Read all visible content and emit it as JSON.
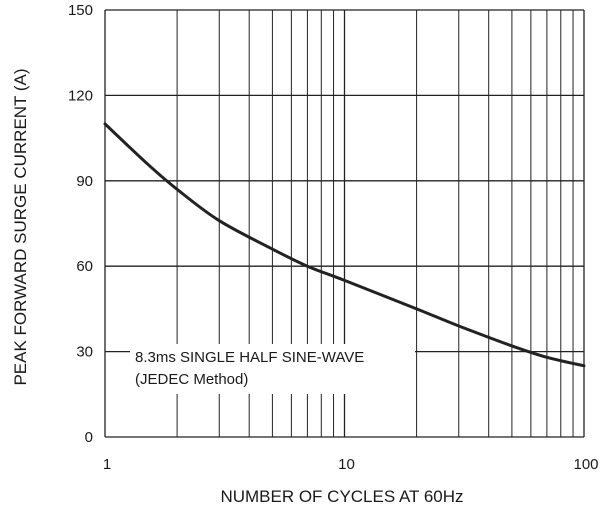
{
  "chart_data": {
    "type": "line",
    "title": "",
    "xlabel": "NUMBER OF CYCLES AT 60Hz",
    "ylabel": "PEAK FORWARD SURGE CURRENT (A)",
    "x_scale": "log",
    "xlim": [
      1,
      100
    ],
    "ylim": [
      0,
      150
    ],
    "grid": true,
    "x_tick_labels": [
      "1",
      "10",
      "100"
    ],
    "x_ticks": [
      1,
      10,
      100
    ],
    "y_tick_labels": [
      "0",
      "30",
      "60",
      "90",
      "120",
      "150"
    ],
    "y_ticks": [
      0,
      30,
      60,
      90,
      120,
      150
    ],
    "series": [
      {
        "x": [
          1,
          1.5,
          2,
          3,
          5,
          7,
          10,
          20,
          30,
          50,
          70,
          100
        ],
        "y": [
          110,
          96,
          87,
          76,
          66,
          60,
          55,
          45,
          39,
          32,
          28,
          25
        ]
      }
    ],
    "annotations": [
      "8.3ms SINGLE HALF SINE-WAVE",
      "(JEDEC Method)"
    ],
    "colors": {
      "line": "#222222",
      "grid": "#222222",
      "background": "#ffffff"
    }
  }
}
